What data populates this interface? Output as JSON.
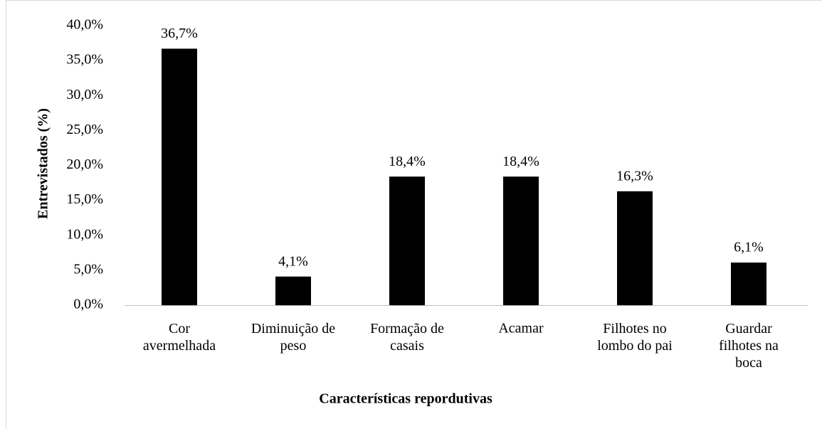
{
  "chart_data": {
    "type": "bar",
    "categories": [
      "Cor\navermelhada",
      "Diminuição de\npeso",
      "Formação de\ncasais",
      "Acamar",
      "Filhotes no\nlombo do pai",
      "Guardar\nfilhotes na\nboca"
    ],
    "values": [
      36.7,
      4.1,
      18.4,
      18.4,
      16.3,
      6.1
    ],
    "value_labels": [
      "36,7%",
      "4,1%",
      "18,4%",
      "18,4%",
      "16,3%",
      "6,1%"
    ],
    "color": "#000000",
    "ylim": [
      0,
      40
    ],
    "yticks": [
      {
        "value": 0,
        "label": "0,0%"
      },
      {
        "value": 5,
        "label": "5,0%"
      },
      {
        "value": 10,
        "label": "10,0%"
      },
      {
        "value": 15,
        "label": "15,0%"
      },
      {
        "value": 20,
        "label": "20,0%"
      },
      {
        "value": 25,
        "label": "25,0%"
      },
      {
        "value": 30,
        "label": "30,0%"
      },
      {
        "value": 35,
        "label": "35,0%"
      },
      {
        "value": 40,
        "label": "40,0%"
      }
    ],
    "ylabel": "Entrevistados (%)",
    "xlabel": "Características repordutivas",
    "grid": false
  }
}
